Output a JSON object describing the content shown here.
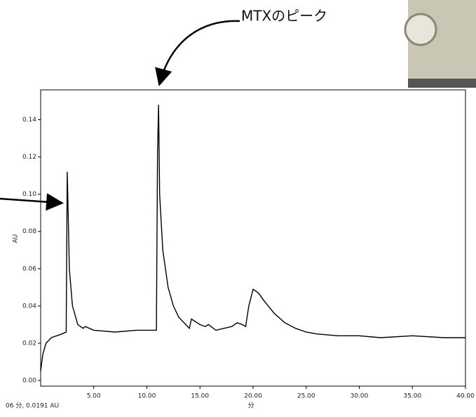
{
  "chart_data": {
    "type": "line",
    "annotation": "MTXのピーク",
    "status": "06 分, 0.0191 AU",
    "xlabel": "分",
    "ylabel": "AU",
    "color": "#000000",
    "x": [
      0,
      0.2,
      0.5,
      1,
      2,
      2.4,
      2.5,
      2.6,
      2.7,
      3,
      3.5,
      4,
      4.2,
      5,
      7,
      9,
      10.9,
      11.0,
      11.1,
      11.2,
      11.5,
      12,
      12.5,
      13,
      14,
      14.2,
      15,
      15.5,
      15.8,
      16.5,
      18,
      18.5,
      19,
      19.3,
      19.6,
      20,
      20.5,
      21,
      22,
      23,
      24,
      25,
      26,
      28,
      30,
      32,
      35,
      38,
      40
    ],
    "values": [
      0.005,
      0.014,
      0.02,
      0.023,
      0.025,
      0.026,
      0.112,
      0.087,
      0.06,
      0.04,
      0.03,
      0.028,
      0.029,
      0.027,
      0.026,
      0.027,
      0.027,
      0.122,
      0.148,
      0.1,
      0.07,
      0.05,
      0.04,
      0.034,
      0.028,
      0.033,
      0.03,
      0.029,
      0.03,
      0.027,
      0.029,
      0.031,
      0.03,
      0.029,
      0.04,
      0.049,
      0.047,
      0.043,
      0.036,
      0.031,
      0.028,
      0.026,
      0.025,
      0.024,
      0.024,
      0.023,
      0.024,
      0.023,
      0.023
    ],
    "xlim": [
      0,
      40
    ],
    "xticks": [
      {
        "value": 5,
        "label": "5.00"
      },
      {
        "value": 10,
        "label": "10.00"
      },
      {
        "value": 15,
        "label": "15.00"
      },
      {
        "value": 20,
        "label": "20.00"
      },
      {
        "value": 25,
        "label": "25.00"
      },
      {
        "value": 30,
        "label": "30.00"
      },
      {
        "value": 35,
        "label": "35.00"
      },
      {
        "value": 40,
        "label": "40.00"
      }
    ],
    "ylim": [
      -0.003,
      0.156
    ],
    "yticks": [
      {
        "value": 0,
        "label": "0.00"
      },
      {
        "value": 0.02,
        "label": "0.02"
      },
      {
        "value": 0.04,
        "label": "0.04"
      },
      {
        "value": 0.06,
        "label": "0.06"
      },
      {
        "value": 0.08,
        "label": "0.08"
      },
      {
        "value": 0.1,
        "label": "0.10"
      },
      {
        "value": 0.12,
        "label": "0.12"
      },
      {
        "value": 0.14,
        "label": "0.14"
      }
    ]
  }
}
